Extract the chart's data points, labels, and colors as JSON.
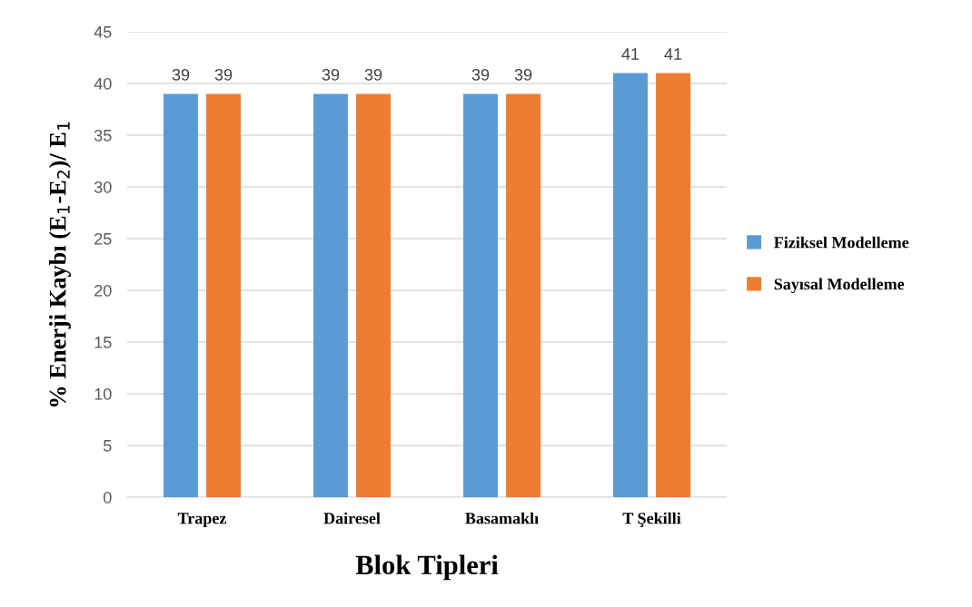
{
  "chart_data": {
    "type": "bar",
    "xlabel": "Blok Tipleri",
    "ylabel": "% Enerji Kaybı (E$_{1}$-E$_{2}$)/ E$_{1}$",
    "categories": [
      "Trapez",
      "Dairesel",
      "Basamaklı",
      "T Şekilli"
    ],
    "series": [
      {
        "name": "Fiziksel Modelleme",
        "color": "#5b9bd5",
        "values": [
          39,
          39,
          39,
          41
        ]
      },
      {
        "name": "Sayısal Modelleme",
        "color": "#ed7d31",
        "values": [
          39,
          39,
          39,
          41
        ]
      }
    ],
    "ylim": [
      0,
      45
    ],
    "yticks": [
      0,
      5,
      10,
      15,
      20,
      25,
      30,
      35,
      40,
      45
    ],
    "grid": "y",
    "legend": "right",
    "data_labels": true
  }
}
